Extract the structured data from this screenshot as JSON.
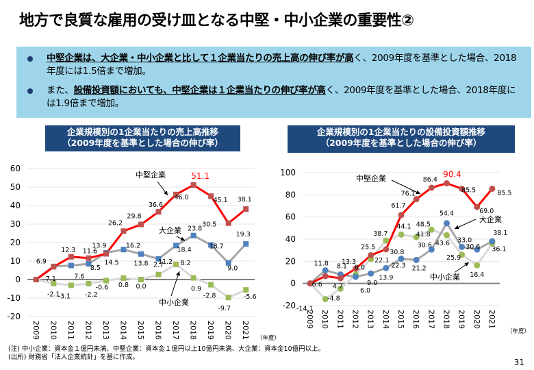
{
  "page": {
    "title": "地方で良質な雇用の受け皿となる中堅・中小企業の重要性②",
    "page_number": "31"
  },
  "summary": {
    "bullets": [
      {
        "emph": "中堅企業は、大企業・中小企業と比して１企業当たりの売上高の伸び率が高",
        "rest": "く、2009年度を基準とした場合、2018年度には1.5倍まで増加。",
        "prefix": ""
      },
      {
        "prefix": "また、",
        "emph": "設備投資額においても、中堅企業は１企業当たりの伸び率が高",
        "rest": "く、2009年度を基準とした場合、2018年度には1.9倍まで増加。"
      }
    ]
  },
  "footnotes": {
    "note": "(注) 中小企業：資本金１億円未満、中堅企業：資本金１億円以上10億円未満、大企業：資本金10億円以上。",
    "source": "(出所) 財務省「法人企業統計」を基に作成。"
  },
  "colors": {
    "chuken": "#ff0000",
    "chuken_marker": "#c0504d",
    "daikigyo": "#a6a6a6",
    "daikigyo_marker": "#4f81bd",
    "chusho": "#d9d9d9",
    "chusho_marker": "#9bbb59",
    "title_bar": "#1f497d",
    "summary_bg": "#9fd5ea"
  },
  "chart_data": [
    {
      "type": "line",
      "title": "企業規模別の1企業当たりの売上高推移\n（2009年度を基準とした場合の伸び率）",
      "title_line1": "企業規模別の1企業当たりの売上高推移",
      "title_line2": "（2009年度を基準とした場合の伸び率）",
      "xlabel": "（年度）",
      "ylabel": "",
      "ylim": [
        -20,
        60
      ],
      "yticks": [
        60,
        50,
        40,
        30,
        20,
        10,
        0,
        -10,
        -20
      ],
      "grid": true,
      "categories": [
        "2009",
        "2010",
        "2011",
        "2012",
        "2013",
        "2014",
        "2015",
        "2016",
        "2017",
        "2018",
        "2019",
        "2020",
        "2021"
      ],
      "series": [
        {
          "name": "中堅企業",
          "key": "chuken",
          "values": [
            0,
            6.9,
            12.3,
            11.6,
            13.9,
            26.2,
            29.8,
            36.6,
            46.0,
            51.1,
            45.1,
            30.5,
            38.1
          ],
          "highlight_index": 9
        },
        {
          "name": "大企業",
          "key": "daikigyo",
          "values": [
            0,
            7.1,
            7.6,
            8.5,
            14.5,
            16.2,
            13.8,
            11.2,
            18.4,
            23.8,
            18.7,
            9.0,
            19.3
          ]
        },
        {
          "name": "中小企業",
          "key": "chusho",
          "values": [
            0,
            -2.1,
            -3.1,
            -2.2,
            -0.6,
            0.8,
            0.0,
            2.7,
            8.2,
            0.9,
            -2.8,
            -9.7,
            -5.6
          ]
        }
      ],
      "annotations": [
        "中堅企業",
        "大企業",
        "中小企業"
      ]
    },
    {
      "type": "line",
      "title": "企業規模別の1企業当たりの設備投資額推移\n（2009年度を基準とした場合の伸び率）",
      "title_line1": "企業規模別の1企業当たりの設備投資額推移",
      "title_line2": "（2009年度を基準とした場合の伸び率）",
      "xlabel": "（年度）",
      "ylabel": "",
      "ylim": [
        -20,
        100
      ],
      "yticks": [
        100,
        80,
        60,
        40,
        20,
        0,
        -20
      ],
      "grid": true,
      "categories": [
        "2009",
        "2010",
        "2011",
        "2012",
        "2013",
        "2014",
        "2015",
        "2016",
        "2017",
        "2018",
        "2019",
        "2020",
        "2021"
      ],
      "series": [
        {
          "name": "中堅企業",
          "key": "chuken",
          "values": [
            0,
            6.6,
            4.7,
            13.3,
            25.5,
            30.8,
            61.7,
            76.1,
            86.4,
            90.4,
            85.5,
            69.0,
            85.5
          ],
          "highlight_index": 9
        },
        {
          "name": "大企業",
          "key": "daikigyo",
          "values": [
            0,
            11.8,
            8.1,
            6.0,
            9.0,
            13.9,
            22.3,
            21.2,
            30.6,
            54.4,
            33.0,
            30.6,
            38.1
          ]
        },
        {
          "name": "中小企業",
          "key": "chusho",
          "values": [
            0,
            -14.1,
            -4.8,
            8.0,
            22.1,
            38.7,
            44.1,
            41.8,
            48.5,
            43.6,
            25.9,
            16.4,
            36.1
          ]
        }
      ],
      "annotations": [
        "中堅企業",
        "大企業",
        "中小企業"
      ]
    }
  ]
}
